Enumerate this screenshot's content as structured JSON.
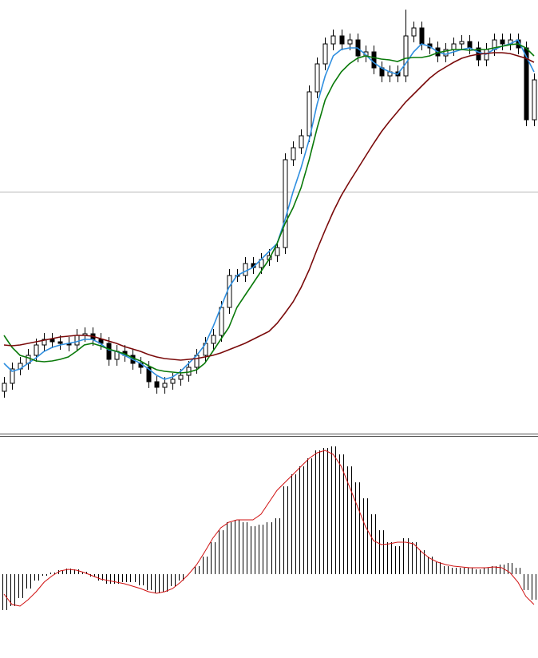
{
  "chart_data": [
    {
      "type": "candlestick",
      "open": [
        50,
        60,
        78,
        85,
        95,
        108,
        115,
        112,
        110,
        108,
        120,
        122,
        115,
        110,
        90,
        100,
        95,
        85,
        80,
        62,
        55,
        60,
        65,
        70,
        80,
        95,
        110,
        120,
        155,
        195,
        195,
        210,
        205,
        215,
        220,
        230,
        340,
        355,
        370,
        425,
        460,
        485,
        495,
        485,
        490,
        470,
        475,
        455,
        445,
        450,
        445,
        495,
        505,
        485,
        480,
        470,
        478,
        485,
        488,
        480,
        465,
        478,
        490,
        485,
        490,
        480,
        390
      ],
      "high": [
        68,
        86,
        93,
        103,
        116,
        123,
        123,
        120,
        118,
        128,
        130,
        130,
        123,
        118,
        108,
        108,
        103,
        93,
        88,
        70,
        68,
        73,
        78,
        88,
        103,
        118,
        128,
        163,
        203,
        203,
        218,
        218,
        223,
        228,
        238,
        348,
        363,
        378,
        433,
        468,
        493,
        503,
        503,
        498,
        498,
        483,
        483,
        463,
        458,
        458,
        528,
        513,
        513,
        493,
        488,
        486,
        493,
        496,
        496,
        488,
        486,
        498,
        498,
        498,
        498,
        488,
        448
      ],
      "low": [
        42,
        52,
        70,
        77,
        87,
        100,
        104,
        102,
        100,
        100,
        112,
        107,
        102,
        82,
        82,
        87,
        77,
        72,
        54,
        47,
        47,
        52,
        57,
        62,
        72,
        87,
        102,
        112,
        147,
        187,
        187,
        197,
        197,
        207,
        212,
        222,
        332,
        347,
        362,
        417,
        452,
        477,
        477,
        477,
        462,
        462,
        447,
        437,
        437,
        437,
        437,
        487,
        477,
        472,
        462,
        462,
        470,
        477,
        472,
        457,
        457,
        470,
        477,
        477,
        472,
        382,
        382
      ],
      "close": [
        60,
        78,
        85,
        95,
        108,
        115,
        112,
        110,
        108,
        120,
        122,
        115,
        110,
        90,
        100,
        95,
        85,
        80,
        62,
        55,
        60,
        65,
        70,
        80,
        95,
        110,
        120,
        155,
        195,
        195,
        210,
        205,
        215,
        220,
        230,
        340,
        355,
        370,
        425,
        460,
        485,
        495,
        485,
        490,
        470,
        475,
        455,
        445,
        450,
        445,
        495,
        505,
        485,
        480,
        470,
        478,
        485,
        488,
        480,
        465,
        478,
        490,
        485,
        490,
        480,
        390,
        440
      ],
      "up_color": "#ffffff",
      "down_color": "#000000",
      "edge_color": "#000000",
      "lines": [
        {
          "color": "#2f8fe0",
          "values": [
            85,
            75,
            78,
            85,
            92,
            100,
            105,
            108,
            110,
            112,
            115,
            115,
            110,
            102,
            100,
            95,
            90,
            85,
            78,
            70,
            65,
            68,
            75,
            85,
            95,
            108,
            130,
            155,
            180,
            195,
            200,
            205,
            215,
            225,
            235,
            265,
            300,
            330,
            365,
            410,
            445,
            470,
            478,
            480,
            480,
            472,
            462,
            455,
            450,
            447,
            460,
            475,
            485,
            482,
            475,
            472,
            475,
            478,
            480,
            475,
            472,
            478,
            482,
            485,
            490,
            470,
            450
          ]
        },
        {
          "color": "#0a7a0a",
          "values": [
            120,
            105,
            95,
            92,
            88,
            87,
            88,
            90,
            93,
            100,
            108,
            110,
            107,
            103,
            100,
            97,
            92,
            88,
            82,
            77,
            75,
            74,
            73,
            74,
            77,
            85,
            100,
            115,
            130,
            155,
            170,
            185,
            200,
            215,
            235,
            260,
            280,
            305,
            340,
            380,
            415,
            435,
            450,
            460,
            467,
            470,
            468,
            466,
            465,
            463,
            467,
            468,
            468,
            470,
            474,
            476,
            478,
            478,
            477,
            478,
            478,
            480,
            482,
            484,
            485,
            480,
            470
          ]
        },
        {
          "color": "#7a0a0a",
          "values": [
            108,
            107,
            108,
            110,
            112,
            114,
            116,
            118,
            119,
            120,
            120,
            119,
            116,
            113,
            110,
            106,
            103,
            100,
            96,
            93,
            91,
            90,
            89,
            90,
            91,
            93,
            95,
            98,
            102,
            106,
            110,
            115,
            120,
            125,
            135,
            148,
            162,
            180,
            202,
            228,
            252,
            275,
            295,
            312,
            328,
            344,
            360,
            375,
            388,
            400,
            412,
            422,
            432,
            442,
            450,
            456,
            462,
            467,
            470,
            472,
            473,
            474,
            474,
            473,
            470,
            467,
            462
          ]
        }
      ],
      "ylim": [
        0,
        540
      ]
    },
    {
      "type": "macd",
      "values": [
        -45,
        -40,
        -30,
        -18,
        -8,
        -2,
        2,
        5,
        7,
        6,
        3,
        -3,
        -8,
        -12,
        -12,
        -10,
        -10,
        -14,
        -20,
        -24,
        -22,
        -15,
        -8,
        0,
        10,
        22,
        40,
        55,
        65,
        68,
        65,
        60,
        62,
        65,
        70,
        110,
        125,
        135,
        145,
        155,
        158,
        160,
        150,
        135,
        115,
        95,
        75,
        55,
        40,
        35,
        45,
        40,
        30,
        22,
        15,
        10,
        8,
        8,
        8,
        6,
        8,
        10,
        12,
        14,
        8,
        -20,
        -32
      ],
      "color": "#000000",
      "signal": {
        "color": "#d01010",
        "values": [
          -25,
          -38,
          -40,
          -32,
          -22,
          -10,
          -2,
          4,
          6,
          5,
          2,
          -2,
          -6,
          -8,
          -10,
          -12,
          -15,
          -18,
          -22,
          -24,
          -22,
          -18,
          -10,
          0,
          12,
          28,
          45,
          58,
          65,
          68,
          68,
          68,
          75,
          90,
          105,
          115,
          125,
          135,
          145,
          152,
          155,
          150,
          135,
          110,
          85,
          60,
          42,
          37,
          38,
          40,
          40,
          38,
          28,
          20,
          15,
          12,
          10,
          9,
          8,
          8,
          8,
          9,
          8,
          2,
          -10,
          -28,
          -38
        ]
      },
      "ylim": [
        -105,
        171
      ]
    }
  ]
}
